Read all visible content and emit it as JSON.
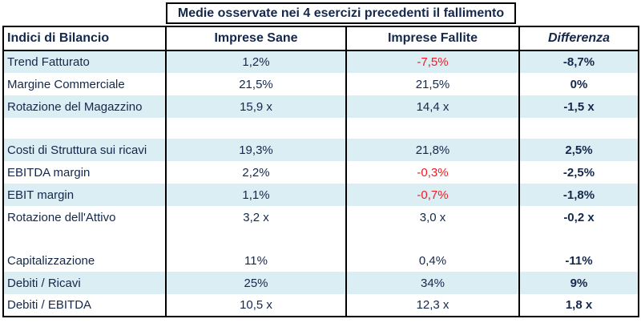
{
  "caption": "Medie osservate nei 4 esercizi precedenti il fallimento",
  "headers": {
    "indicator": "Indici di Bilancio",
    "healthy": "Imprese Sane",
    "failed": "Imprese Fallite",
    "difference": "Differenza"
  },
  "rows": [
    {
      "label": "Trend Fatturato",
      "healthy": "1,2%",
      "failed": "-7,5%",
      "difference": "-8,7%"
    },
    {
      "label": "Margine Commerciale",
      "healthy": "21,5%",
      "failed": "21,5%",
      "difference": "0%"
    },
    {
      "label": "Rotazione del Magazzino",
      "healthy": "15,9 x",
      "failed": "14,4 x",
      "difference": "-1,5 x"
    },
    {
      "label": "Costi di Struttura sui ricavi",
      "healthy": "19,3%",
      "failed": "21,8%",
      "difference": "2,5%"
    },
    {
      "label": "EBITDA margin",
      "healthy": "2,2%",
      "failed": "-0,3%",
      "difference": "-2,5%"
    },
    {
      "label": "EBIT margin",
      "healthy": "1,1%",
      "failed": "-0,7%",
      "difference": "-1,8%"
    },
    {
      "label": "Rotazione dell'Attivo",
      "healthy": "3,2 x",
      "failed": "3,0 x",
      "difference": "-0,2 x"
    },
    {
      "label": "Capitalizzazione",
      "healthy": "11%",
      "failed": "0,4%",
      "difference": "-11%"
    },
    {
      "label": "Debiti / Ricavi",
      "healthy": "25%",
      "failed": "34%",
      "difference": "9%"
    },
    {
      "label": "Debiti / EBITDA",
      "healthy": "10,5 x",
      "failed": "12,3 x",
      "difference": "1,8 x"
    }
  ],
  "colors": {
    "text": "#14284b",
    "negative": "#ee1c25",
    "row_shade": "#dbeef4"
  }
}
